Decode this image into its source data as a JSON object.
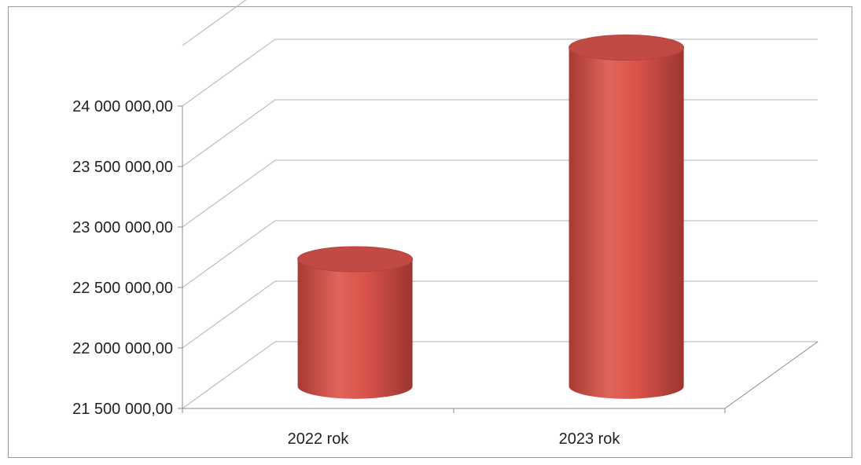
{
  "chart_data": {
    "type": "bar",
    "style": "3d-cylinder",
    "categories": [
      "2022 rok",
      "2023 rok"
    ],
    "series": [
      {
        "values": [
          22550000,
          24300000
        ]
      }
    ],
    "ylim": [
      21500000,
      24500000
    ],
    "yticks": [
      21500000,
      22000000,
      22500000,
      23000000,
      23500000,
      24000000
    ],
    "ytick_labels": [
      "21 500 000,00",
      "22 000 000,00",
      "22 500 000,00",
      "23 000 000,00",
      "23 500 000,00",
      "24 000 000,00"
    ],
    "grid": true,
    "legend": "none",
    "colors": {
      "bar": "#d9534a",
      "bar_dark": "#a83a33",
      "bar_top": "#c24a44",
      "grid": "#b0b0b0"
    }
  }
}
